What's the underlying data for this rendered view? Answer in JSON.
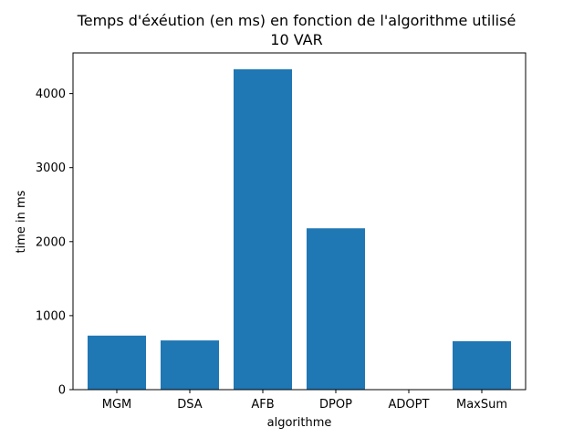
{
  "chart_data": {
    "type": "bar",
    "title": "Temps d'éxéution (en ms) en fonction de l'algorithme utilisé",
    "subtitle": "10 VAR",
    "xlabel": "algorithme",
    "ylabel": "time in ms",
    "categories": [
      "MGM",
      "DSA",
      "AFB",
      "DPOP",
      "ADOPT",
      "MaxSum"
    ],
    "values": [
      730,
      665,
      4330,
      2180,
      0,
      655
    ],
    "ylim": [
      0,
      4550
    ],
    "yticks": [
      0,
      1000,
      2000,
      3000,
      4000
    ],
    "grid": false,
    "bar_color": "#1f77b4"
  }
}
